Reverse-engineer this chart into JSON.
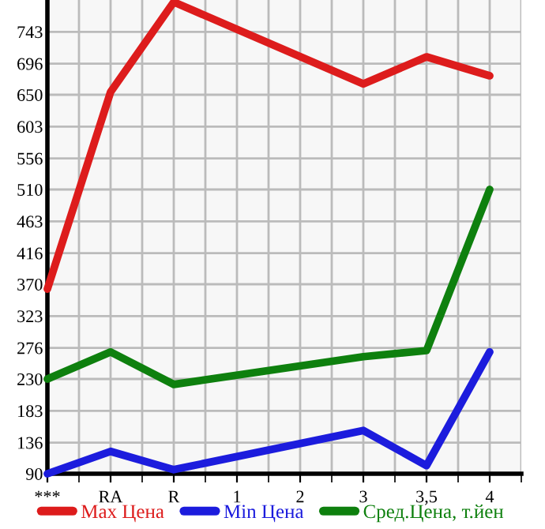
{
  "chart_data": {
    "type": "line",
    "categories": [
      "***",
      "RA",
      "R",
      "1",
      "2",
      "3",
      "3,5",
      "4"
    ],
    "series": [
      {
        "name": "Max Цена",
        "color": "#dd1c1c",
        "values": [
          363,
          654,
          787,
          null,
          null,
          666,
          706,
          678
        ]
      },
      {
        "name": "Min Цена",
        "color": "#1c1cdd",
        "values": [
          90,
          123,
          96,
          null,
          null,
          154,
          102,
          270
        ]
      },
      {
        "name": "Сред.Цена, т.йен",
        "color": "#0e800e",
        "values": [
          230,
          270,
          222,
          null,
          null,
          263,
          272,
          510
        ]
      }
    ],
    "ylim": [
      90,
      790
    ],
    "yticks": [
      90,
      136,
      183,
      230,
      276,
      323,
      370,
      416,
      463,
      510,
      556,
      603,
      650,
      696,
      743
    ],
    "grid": true,
    "legend": "bottom",
    "marker": "none",
    "line_style": "solid"
  }
}
